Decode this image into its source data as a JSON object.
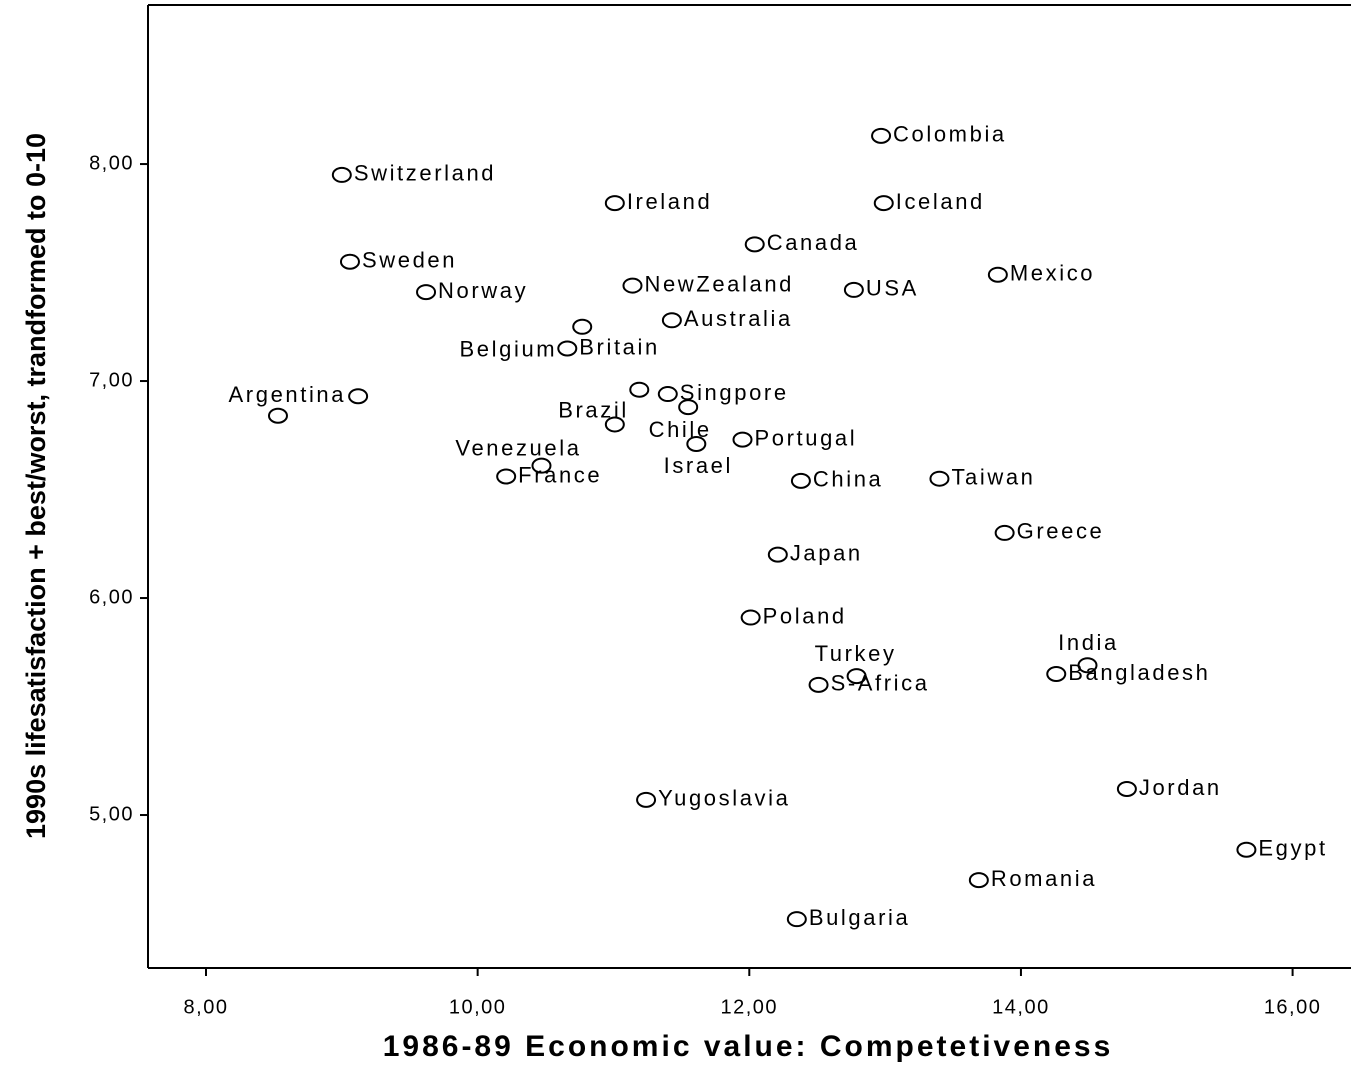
{
  "chart_data": {
    "type": "scatter",
    "xlabel": "1986-89 Economic value: Competetiveness",
    "ylabel": "1990s lifesatisfaction + best/worst, trandformed to 0-10",
    "labels": [
      "Switzerland",
      "Sweden",
      "Norway",
      null,
      "Argentina",
      "Ireland",
      "Iceland",
      "Colombia",
      "Canada",
      "Mexico",
      "NewZealand",
      "USA",
      "Australia",
      "Belgium",
      "Britain",
      null,
      "Brazil",
      "Singpore",
      "Chile",
      "Israel",
      "Portugal",
      "Venezuela",
      "France",
      "China",
      "Taiwan",
      "Greece",
      "Japan",
      "Poland",
      "Turkey",
      "S-Africa",
      "India",
      "Bangladesh",
      "Yugoslavia",
      "Jordan",
      "Egypt",
      "Romania",
      "Bulgaria"
    ],
    "x": [
      9.0,
      9.06,
      9.62,
      8.53,
      9.12,
      11.01,
      12.99,
      12.97,
      12.04,
      13.83,
      11.14,
      12.77,
      11.43,
      10.77,
      10.66,
      11.19,
      11.01,
      11.4,
      11.55,
      11.61,
      11.95,
      10.47,
      10.21,
      12.38,
      13.4,
      13.88,
      12.21,
      12.01,
      12.79,
      12.51,
      14.49,
      14.26,
      11.24,
      14.78,
      15.66,
      13.69,
      12.35
    ],
    "values": [
      7.95,
      7.55,
      7.41,
      6.84,
      6.93,
      7.82,
      7.82,
      8.13,
      7.63,
      7.49,
      7.44,
      7.42,
      7.28,
      7.25,
      7.15,
      6.96,
      6.8,
      6.94,
      6.88,
      6.71,
      6.73,
      6.61,
      6.56,
      6.54,
      6.55,
      6.3,
      6.2,
      5.91,
      5.64,
      5.6,
      5.69,
      5.65,
      5.07,
      5.12,
      4.84,
      4.7,
      4.52
    ],
    "color": "#000000",
    "xlim": [
      7.573,
      16.43
    ],
    "ylim": [
      4.295,
      8.733
    ],
    "xticks": [
      {
        "value": 8,
        "label": "8,00"
      },
      {
        "value": 10,
        "label": "10,00"
      },
      {
        "value": 12,
        "label": "12,00"
      },
      {
        "value": 14,
        "label": "14,00"
      },
      {
        "value": 16,
        "label": "16,00"
      }
    ],
    "yticks": [
      {
        "value": 5,
        "label": "5,00"
      },
      {
        "value": 6,
        "label": "6,00"
      },
      {
        "value": 7,
        "label": "7,00"
      },
      {
        "value": 8,
        "label": "8,00"
      }
    ],
    "grid": false
  }
}
